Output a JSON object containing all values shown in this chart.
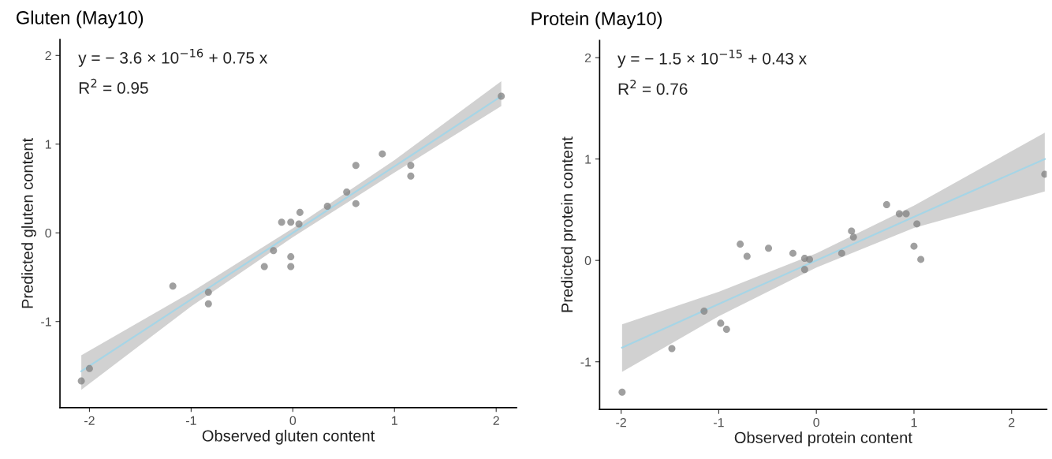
{
  "chart_data": [
    {
      "type": "scatter",
      "title": "Gluten (May10)",
      "xlabel": "Observed gluten content",
      "ylabel": "Predicted gluten content",
      "annotations": [
        "y = − 3.6 × 10$^{−16}$ + 0.75 x",
        "R$^{2}$ = 0.95"
      ],
      "xlim": [
        -2.29,
        2.2
      ],
      "ylim": [
        -1.97,
        2.18
      ],
      "xticks": [
        -2,
        -1,
        0,
        1,
        2
      ],
      "yticks": [
        -1,
        0,
        1,
        2
      ],
      "grid": false,
      "series": [
        {
          "marker": "circle",
          "color": "#808080",
          "x": [
            -2.08,
            -2.0,
            -1.18,
            -0.83,
            -0.83,
            -0.28,
            -0.19,
            -0.02,
            -0.02,
            -0.11,
            -0.02,
            0.07,
            0.06,
            0.34,
            0.53,
            0.62,
            0.62,
            0.88,
            1.16,
            1.16,
            2.05
          ],
          "values": [
            -1.67,
            -1.53,
            -0.6,
            -0.67,
            -0.8,
            -0.38,
            -0.2,
            -0.27,
            -0.38,
            0.12,
            0.12,
            0.23,
            0.1,
            0.3,
            0.46,
            0.33,
            0.76,
            0.89,
            0.76,
            0.64,
            1.54
          ]
        },
        {
          "type": "line",
          "color": "#a6d5e6",
          "x": [
            -2.08,
            -1,
            0,
            1,
            2.05
          ],
          "values": [
            -1.56,
            -0.75,
            0.0,
            0.75,
            1.54
          ],
          "lower": [
            -1.77,
            -0.83,
            -0.05,
            0.68,
            1.43
          ],
          "upper": [
            -1.38,
            -0.67,
            0.05,
            0.82,
            1.71
          ]
        }
      ]
    },
    {
      "type": "scatter",
      "title": "Protein (May10)",
      "xlabel": "Observed protein content",
      "ylabel": "Predicted protein content",
      "annotations": [
        "y = − 1.5 × 10$^{−15}$ + 0.43 x",
        "R$^{2}$ = 0.76"
      ],
      "xlim": [
        -2.22,
        2.36
      ],
      "ylim": [
        -1.47,
        2.17
      ],
      "xticks": [
        -2,
        -1,
        0,
        1,
        2
      ],
      "yticks": [
        -1,
        0,
        1,
        2
      ],
      "grid": false,
      "series": [
        {
          "marker": "circle",
          "color": "#808080",
          "x": [
            -1.99,
            -1.48,
            -1.15,
            -0.98,
            -0.92,
            -0.78,
            -0.71,
            -0.49,
            -0.24,
            -0.12,
            -0.12,
            -0.07,
            0.26,
            1.0,
            1.07,
            0.36,
            0.38,
            0.72,
            0.85,
            0.92,
            1.03,
            2.34
          ],
          "values": [
            -1.3,
            -0.87,
            -0.5,
            -0.62,
            -0.68,
            0.16,
            0.04,
            0.12,
            0.07,
            0.02,
            -0.09,
            0.01,
            0.07,
            0.14,
            0.01,
            0.29,
            0.23,
            0.55,
            0.46,
            0.46,
            0.36,
            0.85
          ]
        },
        {
          "type": "line",
          "color": "#a6d5e6",
          "x": [
            -1.99,
            -1,
            0,
            1,
            2.34
          ],
          "values": [
            -0.86,
            -0.43,
            0.0,
            0.43,
            1.0
          ],
          "lower": [
            -1.1,
            -0.55,
            -0.07,
            0.32,
            0.68
          ],
          "upper": [
            -0.63,
            -0.31,
            0.07,
            0.54,
            1.26
          ]
        }
      ]
    }
  ]
}
